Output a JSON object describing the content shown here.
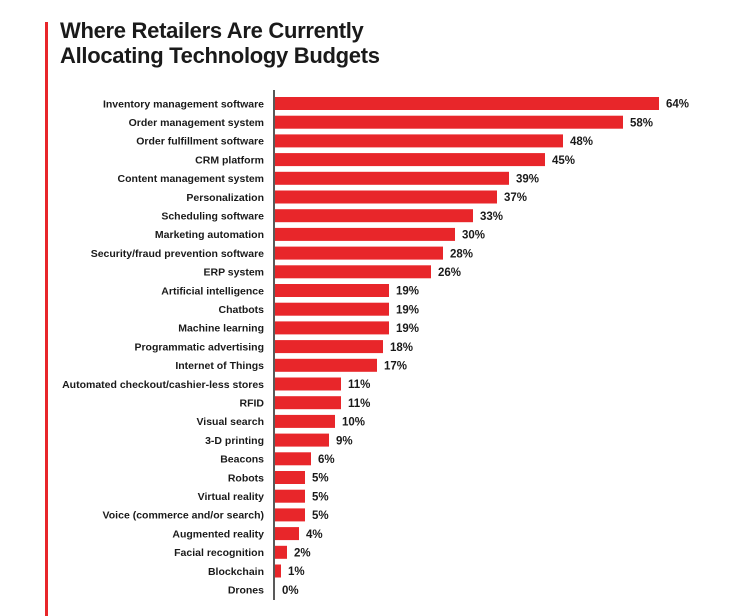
{
  "chart_data": {
    "type": "bar",
    "orientation": "horizontal",
    "title": [
      "Where Retailers Are Currently",
      "Allocating Technology Budgets"
    ],
    "value_suffix": "%",
    "xlim": [
      0,
      64
    ],
    "grid": false,
    "bar_color": "#e8262a",
    "categories": [
      "Inventory management software",
      "Order management system",
      "Order fulfillment software",
      "CRM platform",
      "Content management system",
      "Personalization",
      "Scheduling software",
      "Marketing automation",
      "Security/fraud prevention software",
      "ERP system",
      "Artificial intelligence",
      "Chatbots",
      "Machine learning",
      "Programmatic advertising",
      "Internet of Things",
      "Automated checkout/cashier-less stores",
      "RFID",
      "Visual search",
      "3-D printing",
      "Beacons",
      "Robots",
      "Virtual reality",
      "Voice (commerce and/or search)",
      "Augmented reality",
      "Facial recognition",
      "Blockchain",
      "Drones"
    ],
    "values": [
      64,
      58,
      48,
      45,
      39,
      37,
      33,
      30,
      28,
      26,
      19,
      19,
      19,
      18,
      17,
      11,
      11,
      10,
      9,
      6,
      5,
      5,
      5,
      4,
      2,
      1,
      0
    ]
  }
}
